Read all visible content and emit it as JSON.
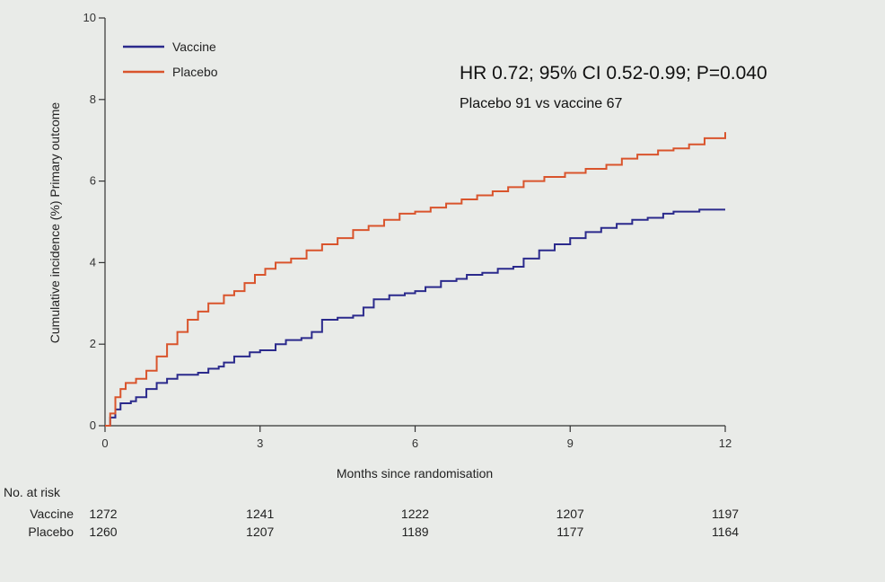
{
  "chart_data": {
    "type": "line",
    "title": "",
    "xlabel": "Months since randomisation",
    "ylabel": "Cumulative incidence (%)  Primary outcome",
    "xlim": [
      0,
      12
    ],
    "ylim": [
      0,
      10
    ],
    "xticks": [
      0,
      3,
      6,
      9,
      12
    ],
    "yticks": [
      0,
      2,
      4,
      6,
      8,
      10
    ],
    "legend": "top-left",
    "grid": false,
    "colors": {
      "Vaccine": "#2b2a8c",
      "Placebo": "#d9542c"
    },
    "annotations": [
      "HR 0.72; 95% CI 0.52-0.99; P=0.040",
      "Placebo 91 vs vaccine 67"
    ],
    "series": [
      {
        "name": "Vaccine",
        "x": [
          0,
          0.1,
          0.2,
          0.3,
          0.5,
          0.6,
          0.8,
          1.0,
          1.2,
          1.4,
          1.8,
          2.0,
          2.2,
          2.3,
          2.5,
          2.8,
          3.0,
          3.3,
          3.5,
          3.8,
          4.0,
          4.2,
          4.5,
          4.8,
          5.0,
          5.2,
          5.5,
          5.8,
          6.0,
          6.2,
          6.5,
          6.8,
          7.0,
          7.3,
          7.6,
          7.9,
          8.1,
          8.4,
          8.7,
          9.0,
          9.3,
          9.6,
          9.9,
          10.2,
          10.5,
          10.8,
          11.0,
          11.5,
          12.0
        ],
        "y": [
          0,
          0.2,
          0.4,
          0.55,
          0.6,
          0.7,
          0.9,
          1.05,
          1.15,
          1.25,
          1.3,
          1.4,
          1.45,
          1.55,
          1.7,
          1.8,
          1.85,
          2.0,
          2.1,
          2.15,
          2.3,
          2.6,
          2.65,
          2.7,
          2.9,
          3.1,
          3.2,
          3.25,
          3.3,
          3.4,
          3.55,
          3.6,
          3.7,
          3.75,
          3.85,
          3.9,
          4.1,
          4.3,
          4.45,
          4.6,
          4.75,
          4.85,
          4.95,
          5.05,
          5.1,
          5.2,
          5.25,
          5.3,
          5.3
        ]
      },
      {
        "name": "Placebo",
        "x": [
          0,
          0.1,
          0.2,
          0.3,
          0.4,
          0.6,
          0.8,
          1.0,
          1.2,
          1.4,
          1.6,
          1.8,
          2.0,
          2.3,
          2.5,
          2.7,
          2.9,
          3.1,
          3.3,
          3.6,
          3.9,
          4.2,
          4.5,
          4.8,
          5.1,
          5.4,
          5.7,
          6.0,
          6.3,
          6.6,
          6.9,
          7.2,
          7.5,
          7.8,
          8.1,
          8.5,
          8.9,
          9.3,
          9.7,
          10.0,
          10.3,
          10.7,
          11.0,
          11.3,
          11.6,
          12.0
        ],
        "y": [
          0,
          0.3,
          0.7,
          0.9,
          1.05,
          1.15,
          1.35,
          1.7,
          2.0,
          2.3,
          2.6,
          2.8,
          3.0,
          3.2,
          3.3,
          3.5,
          3.7,
          3.85,
          4.0,
          4.1,
          4.3,
          4.45,
          4.6,
          4.8,
          4.9,
          5.05,
          5.2,
          5.25,
          5.35,
          5.45,
          5.55,
          5.65,
          5.75,
          5.85,
          6.0,
          6.1,
          6.2,
          6.3,
          6.4,
          6.55,
          6.65,
          6.75,
          6.8,
          6.9,
          7.05,
          7.2
        ]
      }
    ],
    "risk_table": {
      "header": "No. at risk",
      "rows": [
        {
          "label": "Vaccine",
          "values": [
            "1272",
            "1241",
            "1222",
            "1207",
            "1197"
          ]
        },
        {
          "label": "Placebo",
          "values": [
            "1260",
            "1207",
            "1189",
            "1177",
            "1164"
          ]
        }
      ]
    }
  }
}
